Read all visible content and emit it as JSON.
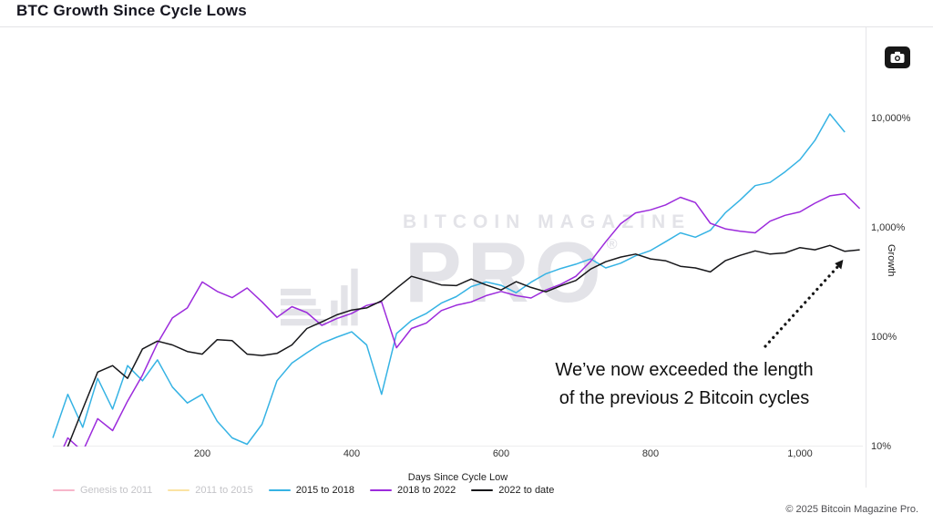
{
  "page": {
    "title": "BTC Growth Since Cycle Lows",
    "copyright": "© 2025 Bitcoin Magazine Pro."
  },
  "toolbar": {
    "screenshot_icon": "camera-icon"
  },
  "watermark": {
    "brand_line1": "BITCOIN MAGAZINE",
    "brand_line2": "PRO",
    "registered": "®"
  },
  "annotation": {
    "line1": "We’ve now exceeded the length",
    "line2": "of the previous 2 Bitcoin cycles"
  },
  "chart_data": {
    "type": "line",
    "title": "BTC Growth Since Cycle Lows",
    "xlabel": "Days Since Cycle Low",
    "ylabel": "Growth",
    "y_scale": "log",
    "grid": false,
    "legend_position": "bottom-left",
    "x_range_days": [
      0,
      1090
    ],
    "y_range_percent": [
      10,
      15000
    ],
    "x_ticks": [
      {
        "label": "200",
        "value": 200
      },
      {
        "label": "400",
        "value": 400
      },
      {
        "label": "600",
        "value": 600
      },
      {
        "label": "800",
        "value": 800
      },
      {
        "label": "1,000",
        "value": 1000
      }
    ],
    "y_ticks": [
      {
        "label": "10,000%",
        "value": 10000
      },
      {
        "label": "1,000%",
        "value": 1000
      },
      {
        "label": "100%",
        "value": 100
      },
      {
        "label": "10%",
        "value": 10
      }
    ],
    "unit": "%",
    "series": [
      {
        "name": "Genesis to 2011",
        "color": "#f7b6ca",
        "visible": false
      },
      {
        "name": "2011 to 2015",
        "color": "#fbe3a3",
        "visible": false
      },
      {
        "name": "2015 to 2018",
        "color": "#36b3e4",
        "visible": true,
        "x_start": 0,
        "x_step": 20,
        "values": [
          12,
          30,
          15,
          42,
          22,
          55,
          40,
          62,
          35,
          25,
          30,
          17,
          12,
          10.5,
          16,
          40,
          58,
          72,
          88,
          100,
          112,
          85,
          30,
          108,
          142,
          165,
          205,
          235,
          290,
          320,
          298,
          255,
          318,
          380,
          425,
          465,
          520,
          430,
          475,
          555,
          620,
          745,
          900,
          820,
          950,
          1370,
          1800,
          2430,
          2600,
          3250,
          4200,
          6300,
          11000,
          7500
        ]
      },
      {
        "name": "2018 to 2022",
        "color": "#9c2bdc",
        "visible": true,
        "x_start": 0,
        "x_step": 20,
        "values": [
          6,
          12,
          9,
          18,
          14,
          26,
          45,
          88,
          150,
          185,
          320,
          262,
          230,
          282,
          210,
          152,
          190,
          168,
          128,
          148,
          165,
          195,
          210,
          80,
          120,
          135,
          175,
          196,
          210,
          240,
          262,
          240,
          228,
          270,
          305,
          360,
          495,
          745,
          1090,
          1370,
          1460,
          1620,
          1900,
          1700,
          1100,
          980,
          930,
          900,
          1150,
          1300,
          1400,
          1680,
          1960,
          2050,
          1500
        ]
      },
      {
        "name": "2022 to date",
        "color": "#17171a",
        "visible": true,
        "x_start": 0,
        "x_step": 20,
        "values": [
          4,
          10,
          22,
          48,
          55,
          42,
          78,
          92,
          85,
          74,
          70,
          95,
          93,
          70,
          68,
          71,
          85,
          120,
          138,
          160,
          177,
          185,
          215,
          280,
          360,
          330,
          300,
          296,
          340,
          300,
          270,
          322,
          285,
          260,
          295,
          330,
          420,
          490,
          540,
          575,
          520,
          500,
          445,
          430,
          395,
          500,
          560,
          615,
          575,
          590,
          660,
          630,
          690,
          610,
          630
        ]
      }
    ]
  }
}
